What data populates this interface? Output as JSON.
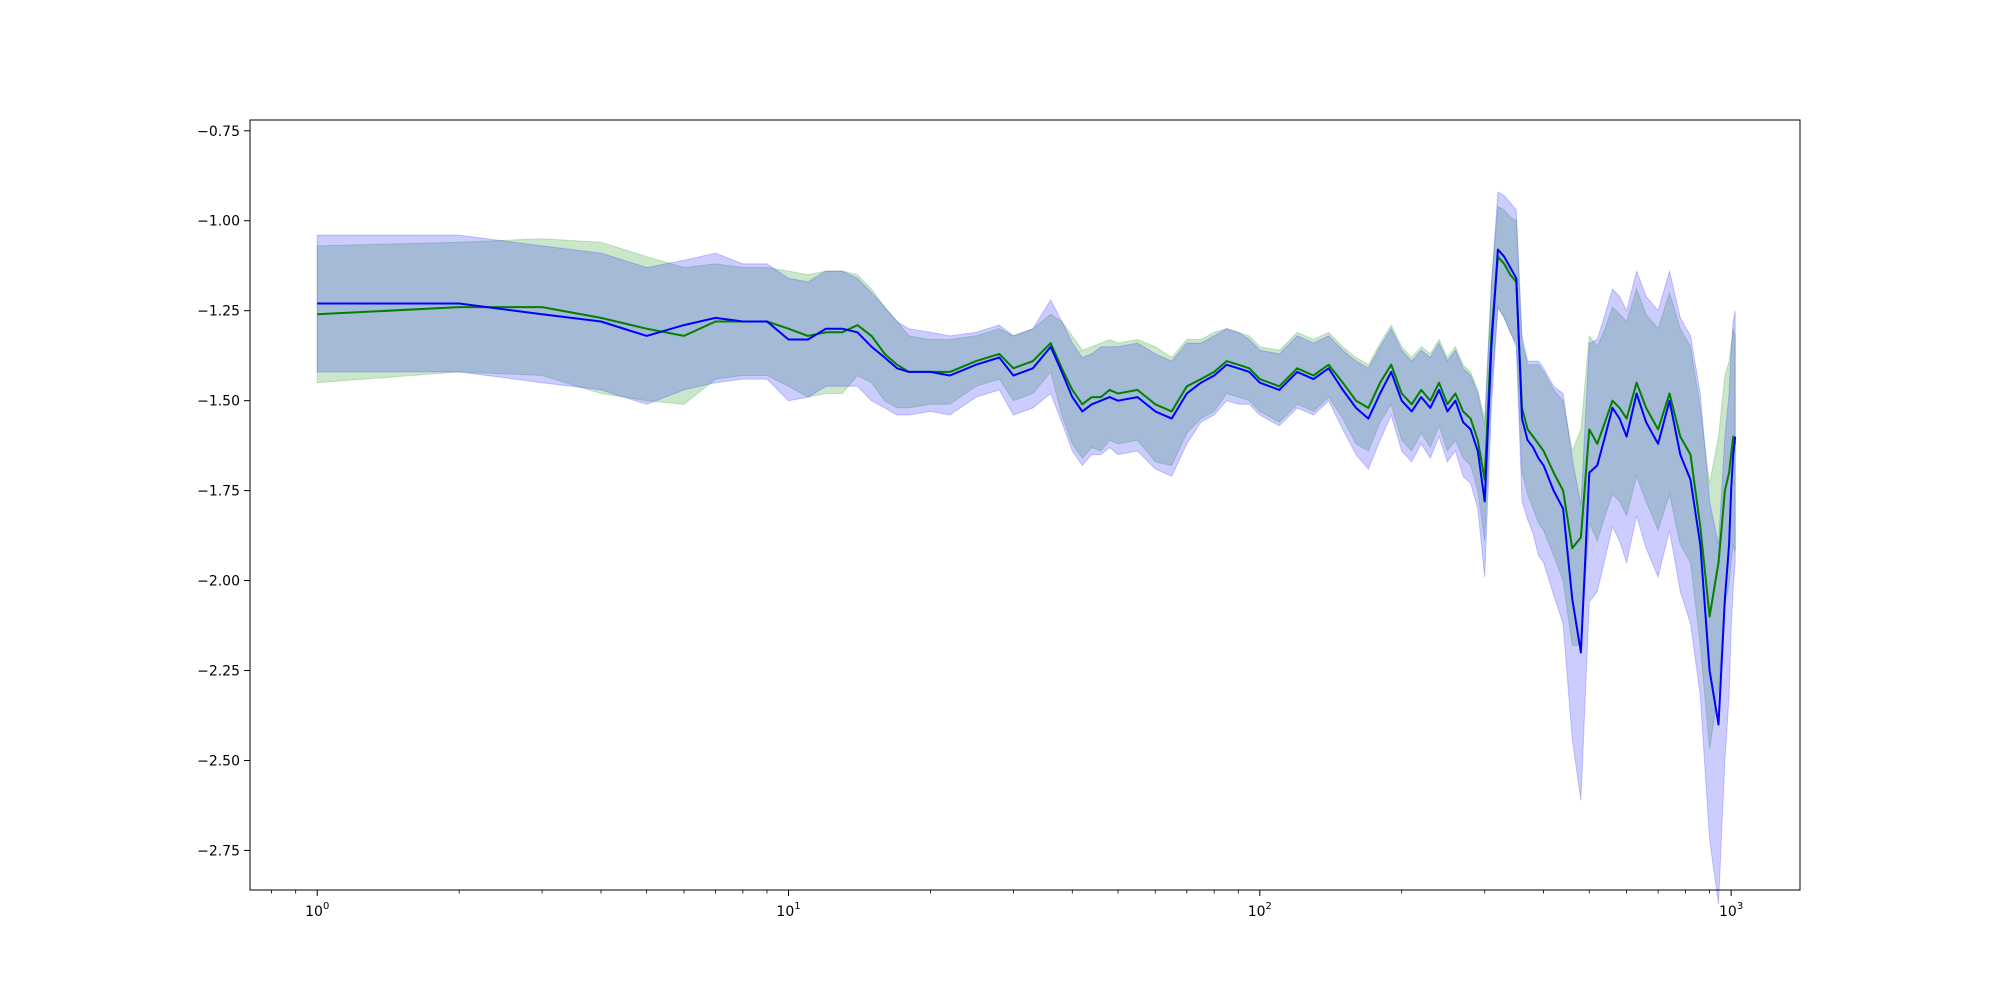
{
  "chart_data": {
    "type": "line",
    "title": "",
    "xlabel": "",
    "ylabel": "",
    "xscale": "log",
    "xlim": [
      0.72,
      1400
    ],
    "ylim": [
      -2.86,
      -0.72
    ],
    "grid": false,
    "legend": "none",
    "x_ticks": [
      {
        "value": 1,
        "base": "10",
        "exp": "0"
      },
      {
        "value": 10,
        "base": "10",
        "exp": "1"
      },
      {
        "value": 100,
        "base": "10",
        "exp": "2"
      },
      {
        "value": 1000,
        "base": "10",
        "exp": "3"
      }
    ],
    "y_ticks": [
      {
        "value": -0.75,
        "label": "−0.75"
      },
      {
        "value": -1.0,
        "label": "−1.00"
      },
      {
        "value": -1.25,
        "label": "−1.25"
      },
      {
        "value": -1.5,
        "label": "−1.50"
      },
      {
        "value": -1.75,
        "label": "−1.75"
      },
      {
        "value": -2.0,
        "label": "−2.00"
      },
      {
        "value": -2.25,
        "label": "−2.25"
      },
      {
        "value": -2.5,
        "label": "−2.50"
      },
      {
        "value": -2.75,
        "label": "−2.75"
      }
    ],
    "series": [
      {
        "color": "#008000",
        "band_color": "#2ca02c",
        "band_opacity": 0.25,
        "x": [
          1,
          2,
          3,
          4,
          5,
          6,
          7,
          8,
          9,
          10,
          11,
          12,
          13,
          14,
          15,
          16,
          17,
          18,
          20,
          22,
          25,
          28,
          30,
          33,
          36,
          38,
          40,
          42,
          44,
          46,
          48,
          50,
          55,
          60,
          65,
          70,
          75,
          80,
          85,
          90,
          95,
          100,
          110,
          120,
          130,
          140,
          150,
          160,
          170,
          180,
          190,
          200,
          210,
          220,
          230,
          240,
          250,
          260,
          270,
          280,
          290,
          300,
          310,
          320,
          330,
          340,
          350,
          360,
          370,
          380,
          390,
          400,
          420,
          440,
          460,
          480,
          500,
          520,
          540,
          560,
          580,
          600,
          630,
          660,
          700,
          740,
          780,
          820,
          860,
          900,
          940,
          970,
          990,
          1000,
          1010,
          1020
        ],
        "y": [
          -1.26,
          -1.24,
          -1.24,
          -1.27,
          -1.3,
          -1.32,
          -1.28,
          -1.28,
          -1.28,
          -1.3,
          -1.32,
          -1.31,
          -1.31,
          -1.29,
          -1.32,
          -1.37,
          -1.4,
          -1.42,
          -1.42,
          -1.42,
          -1.39,
          -1.37,
          -1.41,
          -1.39,
          -1.34,
          -1.41,
          -1.47,
          -1.51,
          -1.49,
          -1.49,
          -1.47,
          -1.48,
          -1.47,
          -1.51,
          -1.53,
          -1.46,
          -1.44,
          -1.42,
          -1.39,
          -1.4,
          -1.41,
          -1.44,
          -1.46,
          -1.41,
          -1.43,
          -1.4,
          -1.45,
          -1.5,
          -1.52,
          -1.45,
          -1.4,
          -1.48,
          -1.51,
          -1.47,
          -1.5,
          -1.45,
          -1.51,
          -1.48,
          -1.53,
          -1.55,
          -1.61,
          -1.72,
          -1.32,
          -1.1,
          -1.12,
          -1.15,
          -1.17,
          -1.52,
          -1.58,
          -1.6,
          -1.62,
          -1.64,
          -1.7,
          -1.75,
          -1.91,
          -1.88,
          -1.58,
          -1.62,
          -1.56,
          -1.5,
          -1.52,
          -1.55,
          -1.45,
          -1.52,
          -1.58,
          -1.48,
          -1.6,
          -1.65,
          -1.85,
          -2.1,
          -1.95,
          -1.75,
          -1.7,
          -1.65,
          -1.6,
          -1.62
        ],
        "y_upper": [
          -1.07,
          -1.06,
          -1.05,
          -1.06,
          -1.1,
          -1.13,
          -1.12,
          -1.13,
          -1.13,
          -1.14,
          -1.15,
          -1.14,
          -1.14,
          -1.15,
          -1.19,
          -1.24,
          -1.28,
          -1.32,
          -1.33,
          -1.33,
          -1.32,
          -1.3,
          -1.32,
          -1.3,
          -1.26,
          -1.28,
          -1.32,
          -1.36,
          -1.35,
          -1.34,
          -1.33,
          -1.34,
          -1.33,
          -1.35,
          -1.38,
          -1.33,
          -1.33,
          -1.31,
          -1.3,
          -1.31,
          -1.32,
          -1.35,
          -1.36,
          -1.31,
          -1.33,
          -1.31,
          -1.35,
          -1.38,
          -1.4,
          -1.34,
          -1.29,
          -1.35,
          -1.38,
          -1.35,
          -1.37,
          -1.33,
          -1.38,
          -1.35,
          -1.4,
          -1.42,
          -1.47,
          -1.55,
          -1.17,
          -0.96,
          -0.97,
          -0.99,
          -1.0,
          -1.34,
          -1.4,
          -1.4,
          -1.4,
          -1.42,
          -1.47,
          -1.5,
          -1.64,
          -1.58,
          -1.32,
          -1.35,
          -1.3,
          -1.24,
          -1.26,
          -1.28,
          -1.19,
          -1.26,
          -1.3,
          -1.2,
          -1.3,
          -1.35,
          -1.52,
          -1.73,
          -1.6,
          -1.43,
          -1.39,
          -1.35,
          -1.3,
          -1.32
        ],
        "y_lower": [
          -1.45,
          -1.42,
          -1.43,
          -1.48,
          -1.5,
          -1.51,
          -1.44,
          -1.43,
          -1.43,
          -1.46,
          -1.49,
          -1.48,
          -1.48,
          -1.43,
          -1.45,
          -1.5,
          -1.52,
          -1.52,
          -1.51,
          -1.51,
          -1.46,
          -1.44,
          -1.5,
          -1.48,
          -1.42,
          -1.54,
          -1.62,
          -1.66,
          -1.63,
          -1.64,
          -1.61,
          -1.62,
          -1.61,
          -1.67,
          -1.68,
          -1.59,
          -1.55,
          -1.53,
          -1.48,
          -1.49,
          -1.5,
          -1.53,
          -1.56,
          -1.51,
          -1.53,
          -1.49,
          -1.55,
          -1.62,
          -1.64,
          -1.56,
          -1.51,
          -1.61,
          -1.64,
          -1.59,
          -1.63,
          -1.57,
          -1.64,
          -1.61,
          -1.66,
          -1.68,
          -1.75,
          -1.89,
          -1.47,
          -1.24,
          -1.27,
          -1.31,
          -1.34,
          -1.7,
          -1.76,
          -1.8,
          -1.84,
          -1.86,
          -1.93,
          -2.0,
          -2.18,
          -2.18,
          -1.84,
          -1.89,
          -1.82,
          -1.76,
          -1.78,
          -1.82,
          -1.71,
          -1.78,
          -1.86,
          -1.76,
          -1.9,
          -1.95,
          -2.18,
          -2.47,
          -2.3,
          -2.07,
          -2.01,
          -1.95,
          -1.9,
          -1.92
        ]
      },
      {
        "color": "#0000ff",
        "band_color": "#3333ff",
        "band_opacity": 0.25,
        "x": [
          1,
          2,
          3,
          4,
          5,
          6,
          7,
          8,
          9,
          10,
          11,
          12,
          13,
          14,
          15,
          16,
          17,
          18,
          20,
          22,
          25,
          28,
          30,
          33,
          36,
          38,
          40,
          42,
          44,
          46,
          48,
          50,
          55,
          60,
          65,
          70,
          75,
          80,
          85,
          90,
          95,
          100,
          110,
          120,
          130,
          140,
          150,
          160,
          170,
          180,
          190,
          200,
          210,
          220,
          230,
          240,
          250,
          260,
          270,
          280,
          290,
          300,
          310,
          320,
          330,
          340,
          350,
          360,
          370,
          380,
          390,
          400,
          420,
          440,
          460,
          480,
          500,
          520,
          540,
          560,
          580,
          600,
          630,
          660,
          700,
          740,
          780,
          820,
          860,
          900,
          940,
          970,
          990,
          1000,
          1010,
          1020
        ],
        "y": [
          -1.23,
          -1.23,
          -1.26,
          -1.28,
          -1.32,
          -1.29,
          -1.27,
          -1.28,
          -1.28,
          -1.33,
          -1.33,
          -1.3,
          -1.3,
          -1.31,
          -1.35,
          -1.38,
          -1.41,
          -1.42,
          -1.42,
          -1.43,
          -1.4,
          -1.38,
          -1.43,
          -1.41,
          -1.35,
          -1.42,
          -1.49,
          -1.53,
          -1.51,
          -1.5,
          -1.49,
          -1.5,
          -1.49,
          -1.53,
          -1.55,
          -1.48,
          -1.45,
          -1.43,
          -1.4,
          -1.41,
          -1.42,
          -1.45,
          -1.47,
          -1.42,
          -1.44,
          -1.41,
          -1.47,
          -1.52,
          -1.55,
          -1.48,
          -1.42,
          -1.5,
          -1.53,
          -1.49,
          -1.52,
          -1.47,
          -1.53,
          -1.5,
          -1.56,
          -1.58,
          -1.64,
          -1.78,
          -1.35,
          -1.08,
          -1.1,
          -1.13,
          -1.16,
          -1.55,
          -1.61,
          -1.63,
          -1.66,
          -1.68,
          -1.75,
          -1.8,
          -2.05,
          -2.2,
          -1.7,
          -1.68,
          -1.6,
          -1.52,
          -1.55,
          -1.6,
          -1.48,
          -1.56,
          -1.62,
          -1.5,
          -1.65,
          -1.72,
          -1.9,
          -2.25,
          -2.4,
          -2.05,
          -1.9,
          -1.75,
          -1.65,
          -1.6
        ],
        "y_upper": [
          -1.04,
          -1.04,
          -1.07,
          -1.09,
          -1.13,
          -1.11,
          -1.09,
          -1.12,
          -1.12,
          -1.16,
          -1.17,
          -1.14,
          -1.14,
          -1.16,
          -1.2,
          -1.24,
          -1.28,
          -1.3,
          -1.31,
          -1.32,
          -1.31,
          -1.29,
          -1.32,
          -1.3,
          -1.22,
          -1.28,
          -1.34,
          -1.38,
          -1.37,
          -1.35,
          -1.35,
          -1.35,
          -1.34,
          -1.37,
          -1.39,
          -1.34,
          -1.34,
          -1.32,
          -1.3,
          -1.31,
          -1.33,
          -1.36,
          -1.37,
          -1.32,
          -1.34,
          -1.32,
          -1.36,
          -1.39,
          -1.41,
          -1.35,
          -1.3,
          -1.36,
          -1.39,
          -1.36,
          -1.38,
          -1.34,
          -1.39,
          -1.36,
          -1.41,
          -1.43,
          -1.48,
          -1.57,
          -1.18,
          -0.92,
          -0.93,
          -0.95,
          -0.97,
          -1.32,
          -1.39,
          -1.39,
          -1.39,
          -1.41,
          -1.46,
          -1.48,
          -1.66,
          -1.79,
          -1.34,
          -1.33,
          -1.26,
          -1.19,
          -1.21,
          -1.25,
          -1.14,
          -1.21,
          -1.25,
          -1.14,
          -1.27,
          -1.32,
          -1.48,
          -1.78,
          -1.9,
          -1.6,
          -1.48,
          -1.36,
          -1.28,
          -1.25
        ],
        "y_lower": [
          -1.42,
          -1.42,
          -1.45,
          -1.47,
          -1.51,
          -1.47,
          -1.45,
          -1.44,
          -1.44,
          -1.5,
          -1.49,
          -1.46,
          -1.46,
          -1.46,
          -1.5,
          -1.52,
          -1.54,
          -1.54,
          -1.53,
          -1.54,
          -1.49,
          -1.47,
          -1.54,
          -1.52,
          -1.48,
          -1.56,
          -1.64,
          -1.68,
          -1.65,
          -1.65,
          -1.63,
          -1.65,
          -1.64,
          -1.69,
          -1.71,
          -1.62,
          -1.56,
          -1.54,
          -1.5,
          -1.51,
          -1.51,
          -1.54,
          -1.57,
          -1.52,
          -1.54,
          -1.5,
          -1.58,
          -1.65,
          -1.69,
          -1.61,
          -1.54,
          -1.64,
          -1.67,
          -1.62,
          -1.66,
          -1.6,
          -1.67,
          -1.64,
          -1.71,
          -1.73,
          -1.8,
          -1.99,
          -1.52,
          -1.24,
          -1.27,
          -1.31,
          -1.35,
          -1.78,
          -1.83,
          -1.87,
          -1.93,
          -1.95,
          -2.04,
          -2.12,
          -2.44,
          -2.61,
          -2.06,
          -2.03,
          -1.94,
          -1.85,
          -1.89,
          -1.95,
          -1.82,
          -1.91,
          -1.99,
          -1.86,
          -2.03,
          -2.12,
          -2.32,
          -2.72,
          -2.9,
          -2.5,
          -2.32,
          -2.14,
          -2.02,
          -1.95
        ]
      }
    ]
  }
}
